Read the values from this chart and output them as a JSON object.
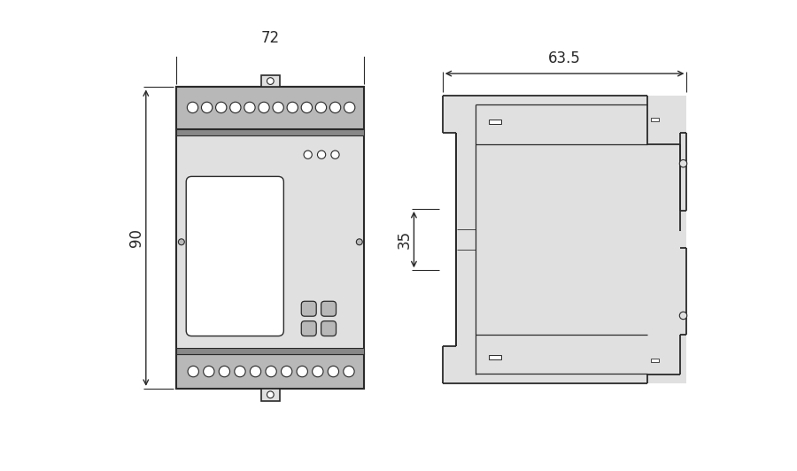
{
  "bg_color": "#ffffff",
  "line_color": "#2a2a2a",
  "gray_light": "#e0e0e0",
  "gray_mid": "#b8b8b8",
  "gray_dark": "#888888",
  "front_view": {
    "dim_width_label": "72",
    "dim_height_label": "90"
  },
  "side_view": {
    "dim_width_label": "63.5",
    "dim_height_label": "35"
  }
}
